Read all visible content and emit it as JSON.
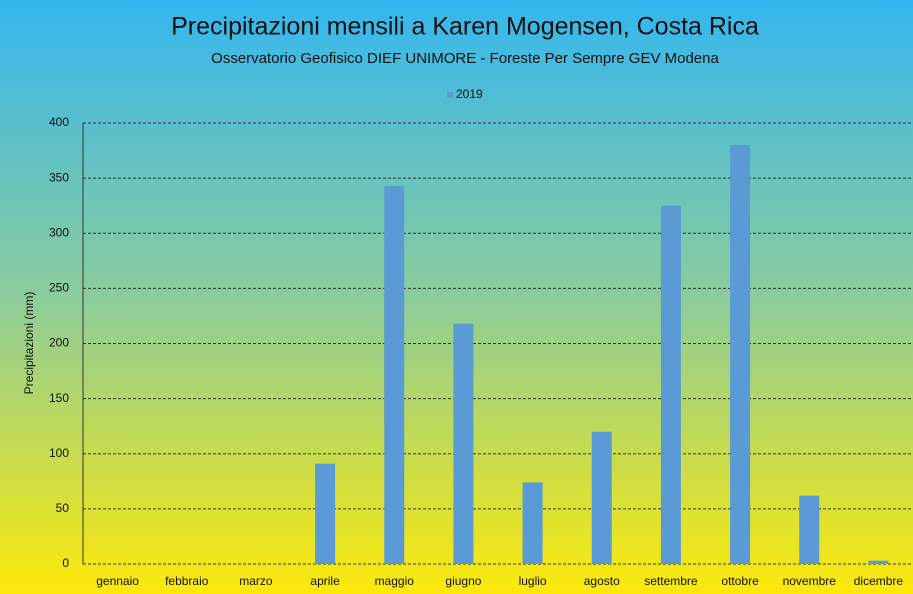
{
  "chart_data": {
    "type": "bar",
    "title": "Precipitazioni mensili a Karen Mogensen, Costa Rica",
    "subtitle": "Osservatorio Geofisico DIEF UNIMORE - Foreste Per Sempre GEV Modena",
    "y_label": "Precipitazioni (mm)",
    "categories": [
      "gennaio",
      "febbraio",
      "marzo",
      "aprile",
      "maggio",
      "giugno",
      "luglio",
      "agosto",
      "settembre",
      "ottobre",
      "novembre",
      "dicembre"
    ],
    "series": [
      {
        "name": "2019",
        "color": "#5b9bd5",
        "values": [
          0,
          0,
          0,
          91,
          343,
          218,
          74,
          120,
          325,
          380,
          62,
          3
        ]
      }
    ],
    "ylim": [
      0,
      400
    ],
    "yticks": [
      0,
      50,
      100,
      150,
      200,
      250,
      300,
      350,
      400
    ],
    "grid": true,
    "legend": "top"
  }
}
